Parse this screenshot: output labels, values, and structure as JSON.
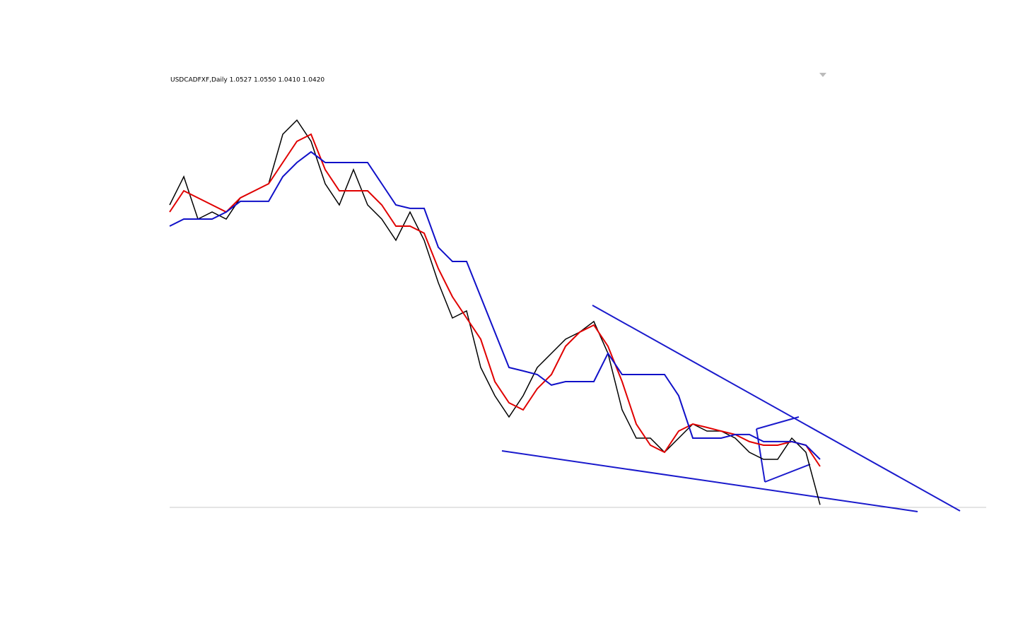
{
  "chart_data": {
    "type": "line",
    "title": "USDCADFXF,Daily  1.0527 1.0550 1.0410 1.0420",
    "categories": [
      null,
      null,
      null,
      null,
      null,
      null,
      null,
      null,
      null,
      null,
      null,
      null,
      null,
      null,
      null,
      null,
      null,
      null,
      null,
      null,
      null,
      null,
      null,
      null,
      null,
      null,
      null,
      null,
      null,
      null,
      null,
      null,
      null,
      null,
      null,
      null,
      null,
      null,
      null,
      null,
      null,
      null,
      null,
      null,
      null,
      null,
      null
    ],
    "ylim": [
      1.04,
      1.257
    ],
    "series": [
      {
        "color": "#000000",
        "values": [
          1.1905,
          1.2045,
          1.1835,
          1.187,
          1.1835,
          1.194,
          1.1975,
          1.201,
          1.2255,
          1.2325,
          1.222,
          1.201,
          1.1905,
          1.208,
          1.1905,
          1.1835,
          1.173,
          1.187,
          1.173,
          1.152,
          1.1345,
          1.138,
          1.11,
          1.096,
          1.0855,
          1.096,
          1.11,
          1.117,
          1.124,
          1.1275,
          1.1328,
          1.117,
          1.089,
          1.075,
          1.075,
          1.068,
          1.075,
          1.082,
          1.0785,
          1.0785,
          1.075,
          1.068,
          1.0645,
          1.0645,
          1.075,
          1.068,
          1.042
        ]
      },
      {
        "color": "#e00000",
        "values": [
          1.187,
          1.1975,
          1.194,
          1.1905,
          1.187,
          1.194,
          1.1975,
          1.201,
          1.2115,
          1.222,
          1.2255,
          1.208,
          1.1975,
          1.1975,
          1.1975,
          1.1905,
          1.18,
          1.18,
          1.1765,
          1.159,
          1.145,
          1.1345,
          1.124,
          1.103,
          1.0925,
          1.089,
          1.0995,
          1.1065,
          1.1205,
          1.1275,
          1.131,
          1.1205,
          1.103,
          1.082,
          1.0715,
          1.068,
          1.0785,
          1.082,
          1.0803,
          1.0785,
          1.0768,
          1.0733,
          1.0715,
          1.0715,
          1.0733,
          1.0715,
          1.061
        ]
      },
      {
        "color": "#1010c8",
        "values": [
          1.18,
          1.1835,
          1.1835,
          1.1835,
          1.187,
          1.1923,
          1.1923,
          1.1923,
          1.2045,
          1.2115,
          1.2168,
          1.2115,
          1.2115,
          1.2115,
          1.2115,
          1.201,
          1.1905,
          1.1888,
          1.1888,
          1.1695,
          1.1625,
          1.1625,
          1.145,
          1.1275,
          1.11,
          1.1083,
          1.1065,
          1.1013,
          1.103,
          1.103,
          1.103,
          1.117,
          1.1065,
          1.1065,
          1.1065,
          1.1065,
          1.096,
          1.075,
          1.075,
          1.075,
          1.0768,
          1.0768,
          1.0733,
          1.0733,
          1.0733,
          1.0715,
          1.0645
        ]
      }
    ]
  }
}
